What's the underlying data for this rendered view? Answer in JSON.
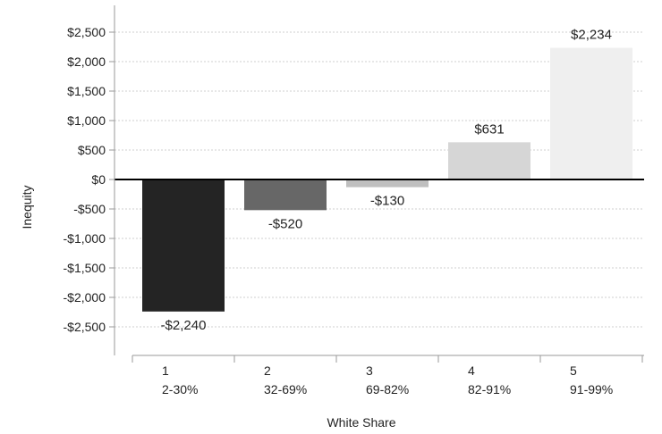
{
  "chart_data": {
    "type": "bar",
    "xlabel": "White Share",
    "ylabel": "Inequity",
    "ylim": [
      -3000,
      2500
    ],
    "y_ticks": [
      2500,
      2000,
      1500,
      1000,
      500,
      0,
      -500,
      -1000,
      -1500,
      -2000,
      -2500
    ],
    "y_tick_labels": [
      "$2,500",
      "$2,000",
      "$1,500",
      "$1,000",
      "$500",
      "$0",
      "-$500",
      "-$1,000",
      "-$1,500",
      "-$2,000",
      "-$2,500"
    ],
    "grid": "horizontal-dotted",
    "categories": [
      {
        "index": "1",
        "range": "2-30%"
      },
      {
        "index": "2",
        "range": "32-69%"
      },
      {
        "index": "3",
        "range": "69-82%"
      },
      {
        "index": "4",
        "range": "82-91%"
      },
      {
        "index": "5",
        "range": "91-99%"
      }
    ],
    "values": [
      -2240,
      -520,
      -130,
      631,
      2234
    ],
    "data_labels": [
      "-$2,240",
      "-$520",
      "-$130",
      "$631",
      "$2,234"
    ],
    "colors": [
      "#242424",
      "#676767",
      "#bfbfbf",
      "#d6d6d6",
      "#efefef"
    ]
  }
}
